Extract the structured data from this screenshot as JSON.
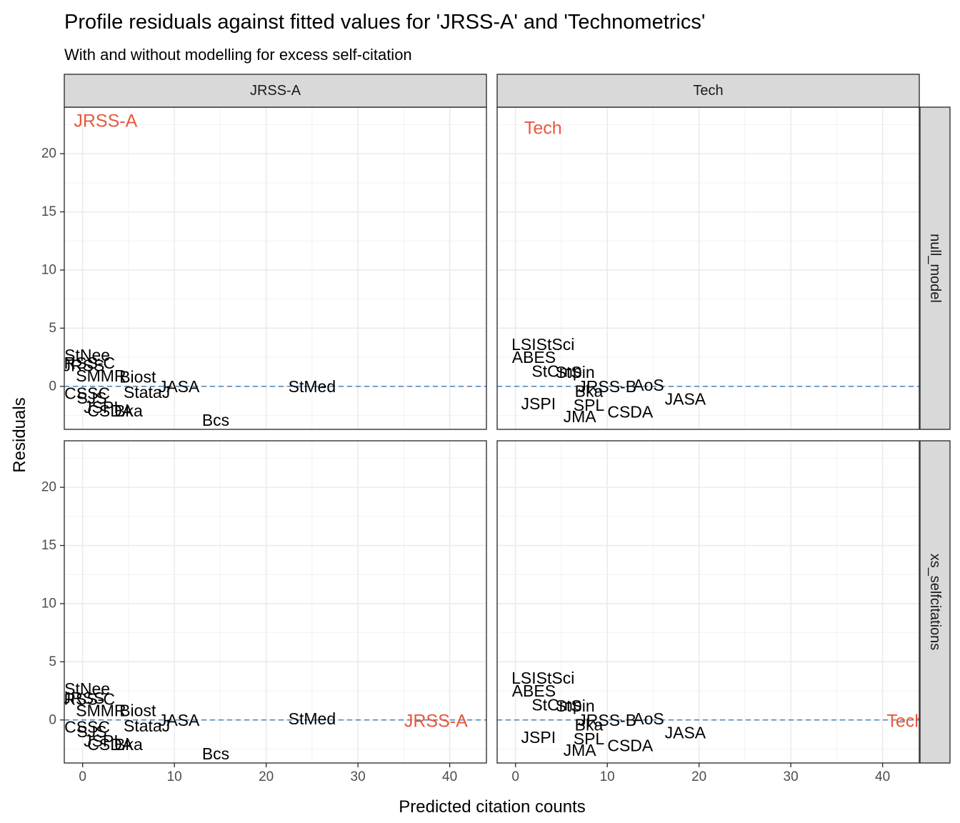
{
  "chart_data": {
    "type": "scatter",
    "title": "Profile residuals against fitted values for 'JRSS-A' and 'Technometrics'",
    "subtitle": "With and without modelling for excess self-citation",
    "xlabel": "Predicted citation counts",
    "ylabel": "Residuals",
    "xlim": [
      -2,
      44
    ],
    "ylim": [
      -3.7,
      24
    ],
    "x_ticks": [
      0,
      10,
      20,
      30,
      40
    ],
    "y_ticks": [
      0,
      5,
      10,
      15,
      20
    ],
    "grid": true,
    "reference_line": {
      "y": 0,
      "style": "dashed",
      "color": "#4682b4"
    },
    "highlight_color": "#e8583f",
    "panel_columns": [
      "JRSS-A",
      "Tech"
    ],
    "panel_rows": [
      "null_model",
      "xs_selfcitations"
    ],
    "panels": [
      {
        "col": "JRSS-A",
        "row": "null_model",
        "highlight": {
          "label": "JRSS-A",
          "x": 2.5,
          "y": 22.8
        },
        "points": [
          {
            "label": "StNee",
            "x": 0.5,
            "y": 2.7
          },
          {
            "label": "JRSS-C",
            "x": 0.3,
            "y": 2.0
          },
          {
            "label": "JRSS",
            "x": 0.1,
            "y": 1.8
          },
          {
            "label": "SMMR",
            "x": 2.0,
            "y": 0.9
          },
          {
            "label": "Biost",
            "x": 6.0,
            "y": 0.8
          },
          {
            "label": "JASA",
            "x": 10.5,
            "y": 0.0
          },
          {
            "label": "StataJ",
            "x": 7.0,
            "y": -0.5
          },
          {
            "label": "CSSC",
            "x": 0.5,
            "y": -0.6
          },
          {
            "label": "SJS",
            "x": 1.0,
            "y": -1.0
          },
          {
            "label": "JSPI",
            "x": 2.0,
            "y": -1.8
          },
          {
            "label": "CSDA",
            "x": 3.0,
            "y": -2.1
          },
          {
            "label": "Bka",
            "x": 5.0,
            "y": -2.1
          },
          {
            "label": "StMed",
            "x": 25.0,
            "y": 0.0
          },
          {
            "label": "Bcs",
            "x": 14.5,
            "y": -2.9
          }
        ]
      },
      {
        "col": "Tech",
        "row": "null_model",
        "highlight": {
          "label": "Tech",
          "x": 3.0,
          "y": 22.2
        },
        "points": [
          {
            "label": "LSIStSci",
            "x": 3.0,
            "y": 3.6
          },
          {
            "label": "ABES",
            "x": 2.0,
            "y": 2.5
          },
          {
            "label": "StCmp",
            "x": 4.5,
            "y": 1.3
          },
          {
            "label": "StSin",
            "x": 6.5,
            "y": 1.2
          },
          {
            "label": "JRSS-B",
            "x": 10.0,
            "y": 0.0
          },
          {
            "label": "AoS",
            "x": 14.5,
            "y": 0.1
          },
          {
            "label": "Bka",
            "x": 8.0,
            "y": -0.4
          },
          {
            "label": "JASA",
            "x": 18.5,
            "y": -1.1
          },
          {
            "label": "CSDA",
            "x": 12.5,
            "y": -2.2
          },
          {
            "label": "JMA",
            "x": 7.0,
            "y": -2.6
          },
          {
            "label": "SPL",
            "x": 8.0,
            "y": -1.6
          },
          {
            "label": "JSPI",
            "x": 2.5,
            "y": -1.5
          }
        ]
      },
      {
        "col": "JRSS-A",
        "row": "xs_selfcitations",
        "highlight": {
          "label": "JRSS-A",
          "x": 38.5,
          "y": -0.1
        },
        "points": [
          {
            "label": "StNee",
            "x": 0.5,
            "y": 2.7
          },
          {
            "label": "JRSS-C",
            "x": 0.3,
            "y": 1.8
          },
          {
            "label": "JRSS",
            "x": 0.1,
            "y": 1.9
          },
          {
            "label": "SMMR",
            "x": 2.0,
            "y": 0.8
          },
          {
            "label": "Biost",
            "x": 6.0,
            "y": 0.8
          },
          {
            "label": "JASA",
            "x": 10.5,
            "y": 0.0
          },
          {
            "label": "StataJ",
            "x": 7.0,
            "y": -0.5
          },
          {
            "label": "CSSC",
            "x": 0.5,
            "y": -0.6
          },
          {
            "label": "SJS",
            "x": 1.0,
            "y": -1.0
          },
          {
            "label": "JSPI",
            "x": 2.0,
            "y": -1.8
          },
          {
            "label": "CSDA",
            "x": 3.0,
            "y": -2.1
          },
          {
            "label": "Bka",
            "x": 5.0,
            "y": -2.1
          },
          {
            "label": "StMed",
            "x": 25.0,
            "y": 0.1
          },
          {
            "label": "Bcs",
            "x": 14.5,
            "y": -2.9
          }
        ]
      },
      {
        "col": "Tech",
        "row": "xs_selfcitations",
        "highlight": {
          "label": "Tech",
          "x": 42.5,
          "y": -0.1
        },
        "points": [
          {
            "label": "LSIStSci",
            "x": 3.0,
            "y": 3.6
          },
          {
            "label": "ABES",
            "x": 2.0,
            "y": 2.5
          },
          {
            "label": "StCmp",
            "x": 4.5,
            "y": 1.3
          },
          {
            "label": "StSin",
            "x": 6.5,
            "y": 1.2
          },
          {
            "label": "JRSS-B",
            "x": 10.0,
            "y": 0.0
          },
          {
            "label": "AoS",
            "x": 14.5,
            "y": 0.1
          },
          {
            "label": "Bka",
            "x": 8.0,
            "y": -0.4
          },
          {
            "label": "JASA",
            "x": 18.5,
            "y": -1.1
          },
          {
            "label": "CSDA",
            "x": 12.5,
            "y": -2.2
          },
          {
            "label": "JMA",
            "x": 7.0,
            "y": -2.6
          },
          {
            "label": "SPL",
            "x": 8.0,
            "y": -1.6
          },
          {
            "label": "JSPI",
            "x": 2.5,
            "y": -1.5
          }
        ]
      }
    ]
  }
}
